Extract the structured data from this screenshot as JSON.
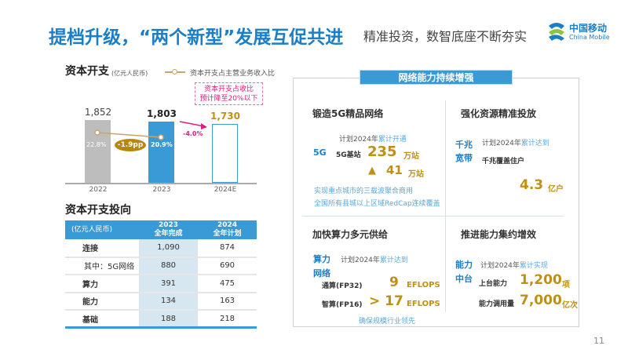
{
  "header": {
    "title": "提档升级，“两个新型”发展互促共进",
    "subtitle": "精准投资，数智底座不断夯实",
    "logo_cn": "中国移动",
    "logo_en": "China Mobile"
  },
  "capex": {
    "title": "资本开支",
    "unit": "(亿元人民币)",
    "legend": "资本开支占主营业务收入比",
    "callout_line1": "资本开支占收比",
    "callout_line2": "预计降至20%以下",
    "change_ratio": "-1.9pp",
    "change_capex": "-4.0%"
  },
  "chart_data": {
    "type": "bar",
    "title": "资本开支",
    "categories": [
      "2022",
      "2023",
      "2024E"
    ],
    "values": [
      1852,
      1803,
      1730
    ],
    "value_labels": [
      "1,852",
      "1,803",
      "1,730"
    ],
    "ratio_series": {
      "name": "资本开支占主营业务收入比",
      "values": [
        22.8,
        20.9
      ],
      "labels": [
        "22.8%",
        "20.9%"
      ]
    },
    "ylim": [
      0,
      2000
    ],
    "colors": [
      "#bdbdbd",
      "#3a9ad6",
      "#ffffff"
    ]
  },
  "allocation": {
    "title": "资本开支投向",
    "columns": [
      "(亿元人民币)",
      "2023\n全年完成",
      "2024\n全年计划"
    ],
    "col2a": "2023",
    "col2b": "全年完成",
    "col3a": "2024",
    "col3b": "全年计划",
    "rows": [
      {
        "name": "连接",
        "v2023": "1,090",
        "v2024": "874"
      },
      {
        "name": "其中：5G网络",
        "v2023": "880",
        "v2024": "690"
      },
      {
        "name": "算力",
        "v2023": "391",
        "v2024": "475"
      },
      {
        "name": "能力",
        "v2023": "134",
        "v2024": "163"
      },
      {
        "name": "基础",
        "v2023": "188",
        "v2024": "218"
      }
    ]
  },
  "network": {
    "banner": "网络能力持续增强",
    "q1": {
      "title": "锻造5G精品网络",
      "tag": "5G",
      "plan": "计划2024年",
      "plan_hl": "累计开通",
      "item": "5G基站",
      "value": "235",
      "unit": "万站",
      "inc": "41",
      "inc_unit": "万站",
      "note1": "实现重点城市的三载波聚合商用",
      "note2": "全国所有县城以上区域RedCap连续覆盖"
    },
    "q2": {
      "title": "强化资源精准投放",
      "tag1": "千兆",
      "tag2": "宽带",
      "plan": "计划2024年",
      "plan_hl": "累计达到",
      "item": "千兆覆盖住户",
      "value": "4.3",
      "unit": "亿户"
    },
    "q3": {
      "title": "加快算力多元供给",
      "tag1": "算力",
      "tag2": "网络",
      "plan": "计划2024年",
      "plan_hl": "累计达到",
      "item1": "通算(FP32)",
      "value1": "9",
      "unit1": "EFLOPS",
      "item2": "智算(FP16)",
      "value2": "> 17",
      "unit2": "EFLOPS",
      "note": "确保规模行业领先"
    },
    "q4": {
      "title": "推进能力集约增效",
      "tag1": "能力",
      "tag2": "中台",
      "plan": "计划2024年",
      "plan_hl": "累计实现",
      "item1": "上台能力",
      "value1": "1,200",
      "unit1": "项",
      "item2": "能力调用量",
      "value2": "7,000",
      "unit2": "亿次"
    }
  },
  "page_number": "11"
}
